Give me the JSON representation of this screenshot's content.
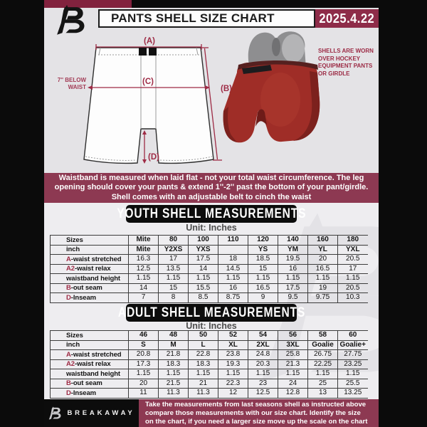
{
  "header": {
    "title": "PANTS SHELL SIZE CHART",
    "date": "2025.4.22"
  },
  "diagram": {
    "label_a": "(A)",
    "label_b": "(B)",
    "label_c": "(C)",
    "label_d": "(D)",
    "waist_note_lines": [
      "7'' BELOW",
      "WAIST"
    ],
    "shell_note_lines": [
      "SHELLS ARE WORN",
      "OVER HOCKEY",
      "EQUIPMENT PANTS",
      "OR GIRDLE"
    ]
  },
  "info_banner": {
    "lines": [
      "Waistband is measured when laid flat - not your total waist circumference. The leg",
      "opening should cover your pants & extend 1''-2'' past the bottom of your pant/girdle.",
      "Shell comes with an adjustable belt to cinch the waist"
    ]
  },
  "youth": {
    "heading": "YOUTH SHELL MEASUREMENTS",
    "unit": "Unit: Inches",
    "rows": [
      {
        "prefix": "",
        "label": "Sizes",
        "header": true,
        "values": [
          "Mite",
          "80",
          "100",
          "110",
          "120",
          "140",
          "160",
          "180"
        ]
      },
      {
        "prefix": "",
        "label": "inch",
        "header": true,
        "values": [
          "Mite",
          "Y2XS",
          "YXS",
          "",
          "YS",
          "YM",
          "YL",
          "YXL"
        ]
      },
      {
        "prefix": "A",
        "label": "-waist stretched",
        "header": false,
        "values": [
          "16.3",
          "17",
          "17.5",
          "18",
          "18.5",
          "19.5",
          "20",
          "20.5"
        ]
      },
      {
        "prefix": "A2",
        "label": "-waist relax",
        "header": false,
        "values": [
          "12.5",
          "13.5",
          "14",
          "14.5",
          "15",
          "16",
          "16.5",
          "17"
        ]
      },
      {
        "prefix": "",
        "label": "waistband height",
        "header": false,
        "values": [
          "1.15",
          "1.15",
          "1.15",
          "1.15",
          "1.15",
          "1.15",
          "1.15",
          "1.15"
        ]
      },
      {
        "prefix": "B",
        "label": "-out seam",
        "header": false,
        "values": [
          "14",
          "15",
          "15.5",
          "16",
          "16.5",
          "17.5",
          "19",
          "20.5"
        ]
      },
      {
        "prefix": "D",
        "label": "-Inseam",
        "header": false,
        "values": [
          "7",
          "8",
          "8.5",
          "8.75",
          "9",
          "9.5",
          "9.75",
          "10.3"
        ]
      }
    ]
  },
  "adult": {
    "heading": "ADULT SHELL MEASUREMENTS",
    "unit": "Unit: Inches",
    "rows": [
      {
        "prefix": "",
        "label": "Sizes",
        "header": true,
        "values": [
          "46",
          "48",
          "50",
          "52",
          "54",
          "56",
          "58",
          "60"
        ]
      },
      {
        "prefix": "",
        "label": "inch",
        "header": true,
        "values": [
          "S",
          "M",
          "L",
          "XL",
          "2XL",
          "3XL",
          "Goalie",
          "Goalie+"
        ]
      },
      {
        "prefix": "A",
        "label": "-waist stretched",
        "header": false,
        "values": [
          "20.8",
          "21.8",
          "22.8",
          "23.8",
          "24.8",
          "25.8",
          "26.75",
          "27.75"
        ]
      },
      {
        "prefix": "A2",
        "label": "-waist relax",
        "header": false,
        "values": [
          "17.3",
          "18.3",
          "18.3",
          "19.3",
          "20.3",
          "21.3",
          "22.25",
          "23.25"
        ]
      },
      {
        "prefix": "",
        "label": "waistband height",
        "header": false,
        "values": [
          "1.15",
          "1.15",
          "1.15",
          "1.15",
          "1.15",
          "1.15",
          "1.15",
          "1.15"
        ]
      },
      {
        "prefix": "B",
        "label": "-out seam",
        "header": false,
        "values": [
          "20",
          "21.5",
          "21",
          "22.3",
          "23",
          "24",
          "25",
          "25.5"
        ]
      },
      {
        "prefix": "D",
        "label": "-Inseam",
        "header": false,
        "values": [
          "11",
          "11.3",
          "11.3",
          "12",
          "12.5",
          "12.8",
          "13",
          "13.25"
        ]
      }
    ]
  },
  "footer": {
    "brand": "BREAKAWAY",
    "lines": [
      "Take the measurements from last seasons shell as instructed above",
      "compare those measurements  with our size chart. Identify the size",
      "on the chart, if you need a larger size move up the scale on the chart"
    ]
  },
  "colors": {
    "accent_maroon": "#8e2c49",
    "banner_maroon": "#8d3952",
    "measure_label_maroon": "#9e2b45",
    "frame_black": "#0b0b0b",
    "shell_red": "#9f2d27"
  }
}
